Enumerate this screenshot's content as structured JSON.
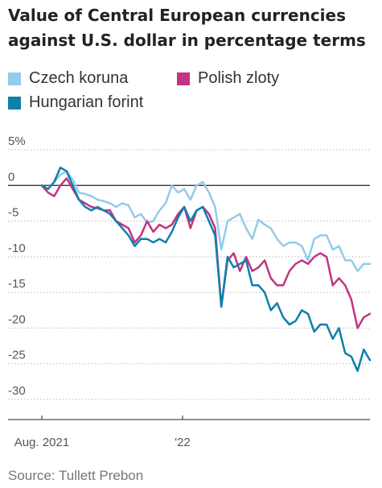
{
  "chart_data": {
    "type": "line",
    "title": "Value of Central European currencies against U.S. dollar in percentage terms",
    "xlabel": "",
    "ylabel": "",
    "x_tick_labels": [
      "Aug. 2021",
      "'22"
    ],
    "y_ticks": [
      {
        "value": 5,
        "label": "5%"
      },
      {
        "value": 0,
        "label": "0"
      },
      {
        "value": -5,
        "label": "-5"
      },
      {
        "value": -10,
        "label": "-10"
      },
      {
        "value": -15,
        "label": "-15"
      },
      {
        "value": -20,
        "label": "-20"
      },
      {
        "value": -25,
        "label": "-25"
      },
      {
        "value": -30,
        "label": "-30"
      }
    ],
    "ylim": [
      -30,
      5
    ],
    "xlim": [
      0,
      15.9
    ],
    "x_unit": "months since Aug. 2021",
    "zero_line": true,
    "grid": "horizontal-dotted",
    "legend_position": "top",
    "source": "Source: Tullett Prebon",
    "series": [
      {
        "name": "Czech koruna",
        "color": "#93cbe9",
        "x": [
          0.0,
          0.3,
          0.6,
          0.9,
          1.2,
          1.5,
          1.8,
          2.1,
          2.4,
          2.7,
          3.0,
          3.3,
          3.6,
          3.9,
          4.2,
          4.5,
          4.8,
          5.1,
          5.4,
          5.7,
          6.0,
          6.3,
          6.6,
          6.9,
          7.2,
          7.5,
          7.8,
          8.1,
          8.4,
          8.7,
          9.0,
          9.3,
          9.6,
          9.9,
          10.2,
          10.5,
          10.8,
          11.1,
          11.4,
          11.7,
          12.0,
          12.3,
          12.6,
          12.9,
          13.2,
          13.5,
          13.8,
          14.1,
          14.4,
          14.7,
          15.0,
          15.3,
          15.6,
          15.9
        ],
        "y": [
          0.0,
          -0.5,
          0.5,
          1.5,
          2.0,
          0.8,
          -1.0,
          -1.2,
          -1.5,
          -2.0,
          -2.2,
          -2.5,
          -3.0,
          -2.5,
          -2.8,
          -4.5,
          -4.0,
          -5.2,
          -5.0,
          -3.5,
          -2.5,
          0.0,
          -1.0,
          -0.5,
          -2.0,
          0.0,
          0.5,
          -1.0,
          -3.0,
          -9.0,
          -5.0,
          -4.5,
          -4.0,
          -6.0,
          -7.5,
          -4.8,
          -5.5,
          -6.0,
          -7.5,
          -8.5,
          -8.0,
          -8.0,
          -8.5,
          -10.5,
          -7.5,
          -7.0,
          -7.0,
          -9.0,
          -8.5,
          -10.5,
          -10.5,
          -12.0,
          -11.0,
          -11.0
        ]
      },
      {
        "name": "Polish zloty",
        "color": "#c23481",
        "x": [
          0.0,
          0.3,
          0.6,
          0.9,
          1.2,
          1.5,
          1.8,
          2.1,
          2.4,
          2.7,
          3.0,
          3.3,
          3.6,
          3.9,
          4.2,
          4.5,
          4.8,
          5.1,
          5.4,
          5.7,
          6.0,
          6.3,
          6.6,
          6.9,
          7.2,
          7.5,
          7.8,
          8.1,
          8.4,
          8.7,
          9.0,
          9.3,
          9.6,
          9.9,
          10.2,
          10.5,
          10.8,
          11.1,
          11.4,
          11.7,
          12.0,
          12.3,
          12.6,
          12.9,
          13.2,
          13.5,
          13.8,
          14.1,
          14.4,
          14.7,
          15.0,
          15.3,
          15.6,
          15.9
        ],
        "y": [
          0.0,
          -1.0,
          -1.5,
          0.0,
          1.0,
          -0.5,
          -2.0,
          -2.5,
          -3.0,
          -3.2,
          -3.5,
          -3.5,
          -5.0,
          -5.5,
          -6.0,
          -8.0,
          -7.0,
          -5.0,
          -6.5,
          -5.5,
          -6.0,
          -5.5,
          -4.0,
          -3.0,
          -6.0,
          -3.5,
          -3.0,
          -4.0,
          -6.0,
          -17.0,
          -10.5,
          -9.5,
          -12.0,
          -10.0,
          -12.0,
          -11.5,
          -10.5,
          -13.0,
          -14.0,
          -14.0,
          -12.0,
          -11.0,
          -10.5,
          -11.0,
          -10.0,
          -9.5,
          -10.0,
          -14.0,
          -13.0,
          -14.0,
          -16.0,
          -20.0,
          -18.5,
          -18.0
        ]
      },
      {
        "name": "Hungarian forint",
        "color": "#0f7fad",
        "x": [
          0.0,
          0.3,
          0.6,
          0.9,
          1.2,
          1.5,
          1.8,
          2.1,
          2.4,
          2.7,
          3.0,
          3.3,
          3.6,
          3.9,
          4.2,
          4.5,
          4.8,
          5.1,
          5.4,
          5.7,
          6.0,
          6.3,
          6.6,
          6.9,
          7.2,
          7.5,
          7.8,
          8.1,
          8.4,
          8.7,
          9.0,
          9.3,
          9.6,
          9.9,
          10.2,
          10.5,
          10.8,
          11.1,
          11.4,
          11.7,
          12.0,
          12.3,
          12.6,
          12.9,
          13.2,
          13.5,
          13.8,
          14.1,
          14.4,
          14.7,
          15.0,
          15.3,
          15.6,
          15.9
        ],
        "y": [
          0.0,
          -0.5,
          0.5,
          2.5,
          2.0,
          0.0,
          -2.0,
          -3.0,
          -3.5,
          -3.0,
          -3.5,
          -4.0,
          -5.0,
          -6.0,
          -7.0,
          -8.5,
          -7.5,
          -7.5,
          -8.0,
          -7.5,
          -8.0,
          -6.5,
          -4.5,
          -3.0,
          -5.0,
          -3.5,
          -3.0,
          -5.0,
          -7.0,
          -17.0,
          -10.0,
          -11.5,
          -11.0,
          -10.5,
          -14.0,
          -14.0,
          -15.0,
          -17.5,
          -16.5,
          -18.5,
          -19.5,
          -19.0,
          -17.5,
          -18.0,
          -20.5,
          -19.5,
          -19.5,
          -21.5,
          -20.0,
          -23.5,
          -24.0,
          -26.0,
          -23.0,
          -24.5
        ]
      }
    ]
  }
}
